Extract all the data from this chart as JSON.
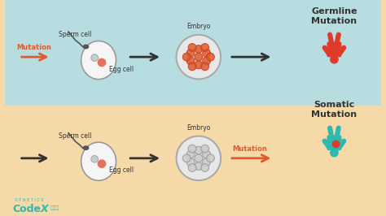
{
  "bg_top": "#f5d9a8",
  "bg_bottom": "#b8dde0",
  "arrow_color": "#333333",
  "mutation_arrow_color": "#e05a2b",
  "teal_person": "#2fb8ac",
  "red_person": "#e03a2b",
  "tumor_color": "#e03a2b",
  "embryo_outline": "#aaaaaa",
  "embryo_fill": "#e8e8e8",
  "text_color": "#333333",
  "codex_color": "#2fb8ac",
  "title_top": "Somatic\nMutation",
  "title_bottom": "Germline\nMutation",
  "label_egg": "Egg cell",
  "label_sperm": "Sperm cell",
  "label_embryo": "Embryo",
  "label_mutation": "Mutation"
}
